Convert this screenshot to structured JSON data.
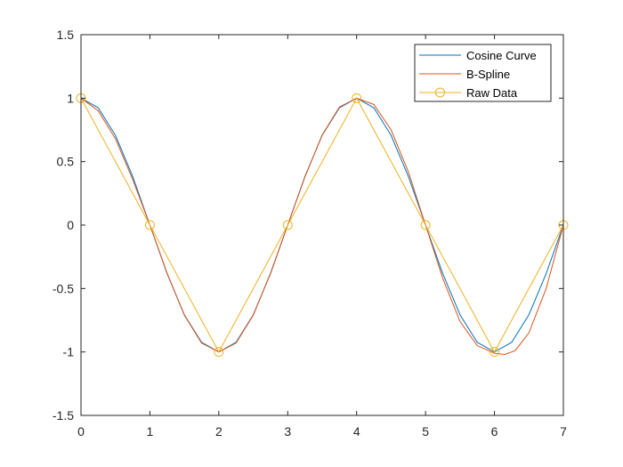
{
  "chart_data": {
    "type": "line",
    "title": "",
    "xlabel": "",
    "ylabel": "",
    "xlim": [
      0,
      7
    ],
    "ylim": [
      -1.5,
      1.5
    ],
    "xticks": [
      0,
      1,
      2,
      3,
      4,
      5,
      6,
      7
    ],
    "xtick_labels": [
      "0",
      "1",
      "2",
      "3",
      "4",
      "5",
      "6",
      "7"
    ],
    "yticks": [
      -1.5,
      -1,
      -0.5,
      0,
      0.5,
      1,
      1.5
    ],
    "ytick_labels": [
      "-1.5",
      "-1",
      "-0.5",
      "0",
      "0.5",
      "1",
      "1.5"
    ],
    "grid": false,
    "legend_position": "top-right",
    "series": [
      {
        "name": "Cosine Curve",
        "color": "#0072BD",
        "style": "line",
        "x": [
          0,
          0.25,
          0.5,
          0.75,
          1,
          1.25,
          1.5,
          1.75,
          2,
          2.25,
          2.5,
          2.75,
          3,
          3.25,
          3.5,
          3.75,
          4,
          4.25,
          4.5,
          4.75,
          5,
          5.25,
          5.5,
          5.75,
          6,
          6.25,
          6.5,
          6.75,
          7
        ],
        "y": [
          1,
          0.924,
          0.707,
          0.383,
          0,
          -0.383,
          -0.707,
          -0.924,
          -1,
          -0.924,
          -0.707,
          -0.383,
          0,
          0.383,
          0.707,
          0.924,
          1,
          0.924,
          0.707,
          0.383,
          0,
          -0.383,
          -0.707,
          -0.924,
          -1,
          -0.924,
          -0.707,
          -0.383,
          0
        ]
      },
      {
        "name": "B-Spline",
        "color": "#D95319",
        "style": "line",
        "x": [
          0,
          0.25,
          0.5,
          0.75,
          1,
          1.25,
          1.5,
          1.75,
          2,
          2.25,
          2.5,
          2.75,
          3,
          3.25,
          3.5,
          3.75,
          4,
          4.25,
          4.5,
          4.75,
          5,
          5.25,
          5.5,
          5.75,
          6,
          6.15,
          6.3,
          6.5,
          6.75,
          7
        ],
        "y": [
          1,
          0.9,
          0.68,
          0.36,
          0,
          -0.38,
          -0.71,
          -0.93,
          -1,
          -0.93,
          -0.71,
          -0.38,
          0,
          0.38,
          0.71,
          0.93,
          1,
          0.95,
          0.75,
          0.42,
          0,
          -0.42,
          -0.76,
          -0.95,
          -1.01,
          -1.02,
          -0.99,
          -0.85,
          -0.5,
          0
        ]
      },
      {
        "name": "Raw Data",
        "color": "#EDB120",
        "style": "line-marker",
        "marker": "circle",
        "x": [
          0,
          1,
          2,
          3,
          4,
          5,
          6,
          7
        ],
        "y": [
          1,
          0,
          -1,
          0,
          1,
          0,
          -1,
          0
        ]
      }
    ]
  }
}
